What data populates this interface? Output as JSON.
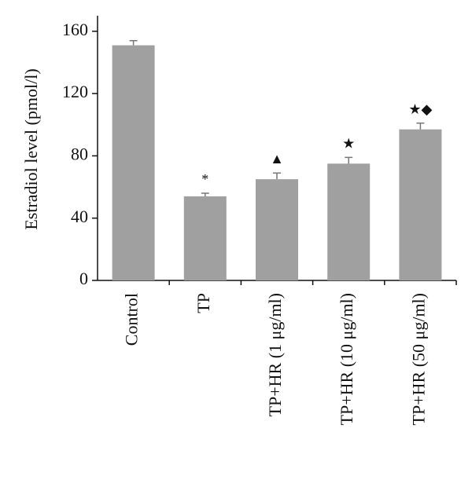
{
  "chart_data": {
    "type": "bar",
    "y_label": "Estradiol level (pmol/l)",
    "categories": [
      "Control",
      "TP",
      "TP+HR (1 μg/ml)",
      "TP+HR (10 μg/ml)",
      "TP+HR (50 μg/ml)"
    ],
    "values": [
      151,
      54,
      65,
      75,
      97
    ],
    "errors": [
      3,
      2,
      4,
      4,
      4
    ],
    "annotations": [
      null,
      "*",
      "▲",
      "★",
      "★◆"
    ],
    "color": "#a0a0a0",
    "ylim": [
      0,
      170
    ],
    "yticks": [
      0,
      40,
      80,
      120,
      160
    ],
    "grid": false
  }
}
